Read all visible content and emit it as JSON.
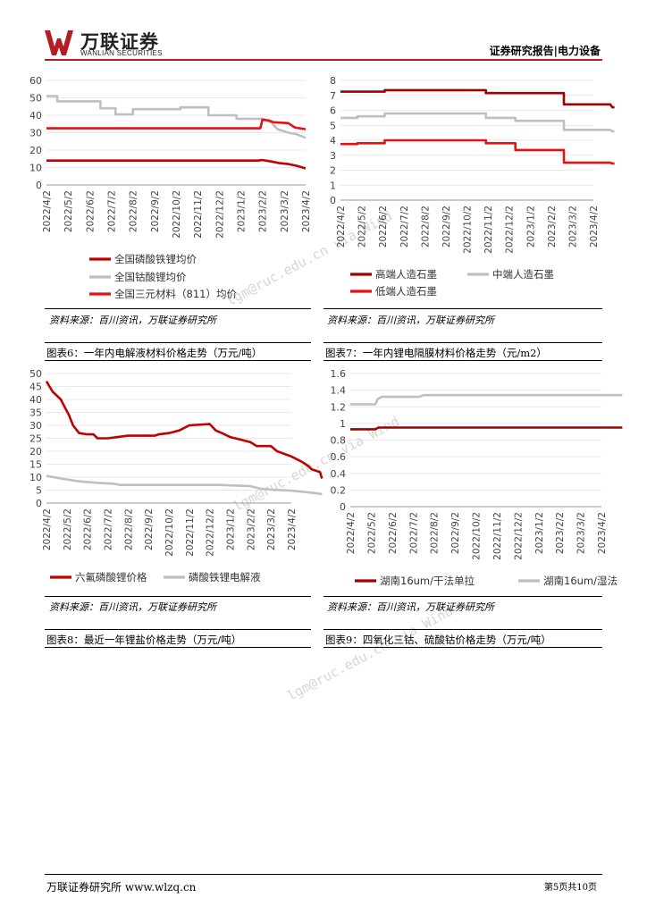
{
  "header": {
    "logo_cn": "万联证券",
    "logo_en": "WANLIAN SECURITIES",
    "report_type": "证券研究报告|电力设备",
    "brand_color": "#b21e23"
  },
  "watermarks": [
    "lgm@ruc.edu.cn via Wind",
    "lgm@ruc.edu.cn via Wind",
    "lgm@ruc.edu.cn via Wind"
  ],
  "charts": [
    {
      "type": "line",
      "x_ticks": [
        "2022/4/2",
        "2022/5/2",
        "2022/6/2",
        "2022/7/2",
        "2022/8/2",
        "2022/9/2",
        "2022/10/2",
        "2022/11/2",
        "2022/12/2",
        "2023/1/2",
        "2023/2/2",
        "2023/3/2",
        "2023/4/2"
      ],
      "ylim": [
        0,
        60
      ],
      "y_ticks": [
        "0",
        "10",
        "20",
        "30",
        "40",
        "50",
        "60"
      ],
      "series": [
        {
          "name": "全国磷酸铁锂均价",
          "color": "#c00000",
          "points": [
            [
              0,
              14
            ],
            [
              9.8,
              14
            ],
            [
              10,
              14.3
            ],
            [
              10.4,
              13.5
            ],
            [
              10.8,
              12.5
            ],
            [
              11.2,
              12
            ],
            [
              11.6,
              11
            ],
            [
              12,
              9.5
            ]
          ]
        },
        {
          "name": "全国钴酸锂均价",
          "color": "#bfbfbf",
          "points": [
            [
              0,
              51
            ],
            [
              0.5,
              51
            ],
            [
              0.5,
              48
            ],
            [
              2.5,
              48
            ],
            [
              2.5,
              44
            ],
            [
              3.2,
              44
            ],
            [
              3.2,
              40.5
            ],
            [
              4,
              40.5
            ],
            [
              4,
              43.5
            ],
            [
              6.2,
              43.5
            ],
            [
              6.2,
              44.5
            ],
            [
              7.5,
              44.5
            ],
            [
              7.5,
              40
            ],
            [
              8.8,
              40
            ],
            [
              8.8,
              38
            ],
            [
              10,
              38
            ],
            [
              10.4,
              36
            ],
            [
              10.7,
              32
            ],
            [
              11.2,
              30
            ],
            [
              11.6,
              29
            ],
            [
              12,
              27
            ]
          ]
        },
        {
          "name": "全国三元材料（811）均价",
          "color": "#e81010",
          "points": [
            [
              0,
              32.5
            ],
            [
              9.9,
              32.5
            ],
            [
              10,
              37.5
            ],
            [
              10.3,
              37
            ],
            [
              10.5,
              36
            ],
            [
              11.2,
              35.5
            ],
            [
              11.5,
              33
            ],
            [
              12,
              32
            ]
          ]
        }
      ]
    },
    {
      "type": "line",
      "x_ticks": [
        "2022/4/2",
        "2022/5/2",
        "2022/6/2",
        "2022/7/2",
        "2022/8/2",
        "2022/9/2",
        "2022/10/2",
        "2022/11/2",
        "2022/12/2",
        "2023/1/2",
        "2023/2/2",
        "2023/3/2",
        "2023/4/2"
      ],
      "ylim": [
        0,
        8
      ],
      "y_ticks": [
        "0",
        "1",
        "2",
        "3",
        "4",
        "5",
        "6",
        "7",
        "8"
      ],
      "series": [
        {
          "name": "高端人造石墨",
          "color": "#a00000",
          "points": [
            [
              0,
              7.25
            ],
            [
              2.1,
              7.25
            ],
            [
              2.1,
              7.35
            ],
            [
              6.9,
              7.35
            ],
            [
              6.9,
              7.15
            ],
            [
              10.6,
              7.15
            ],
            [
              10.6,
              6.4
            ],
            [
              12.8,
              6.4
            ],
            [
              12.9,
              6.2
            ],
            [
              13,
              6.2
            ]
          ]
        },
        {
          "name": "中端人造石墨",
          "color": "#bfbfbf",
          "points": [
            [
              0,
              5.5
            ],
            [
              0.8,
              5.5
            ],
            [
              0.8,
              5.6
            ],
            [
              2.1,
              5.6
            ],
            [
              2.1,
              5.8
            ],
            [
              6.9,
              5.8
            ],
            [
              6.9,
              5.5
            ],
            [
              8.3,
              5.5
            ],
            [
              8.3,
              5.3
            ],
            [
              10.6,
              5.3
            ],
            [
              10.6,
              4.7
            ],
            [
              12.8,
              4.7
            ],
            [
              12.9,
              4.6
            ],
            [
              13,
              4.6
            ]
          ]
        },
        {
          "name": "低端人造石墨",
          "color": "#e81010",
          "points": [
            [
              0,
              3.75
            ],
            [
              0.8,
              3.75
            ],
            [
              0.8,
              3.8
            ],
            [
              2.1,
              3.8
            ],
            [
              2.1,
              4.0
            ],
            [
              6.9,
              4.0
            ],
            [
              6.9,
              3.8
            ],
            [
              8.3,
              3.8
            ],
            [
              8.3,
              3.35
            ],
            [
              10.6,
              3.35
            ],
            [
              10.6,
              2.5
            ],
            [
              12.8,
              2.5
            ],
            [
              12.9,
              2.45
            ],
            [
              13,
              2.45
            ]
          ]
        }
      ]
    },
    {
      "type": "line",
      "x_ticks": [
        "2022/4/2",
        "2022/5/2",
        "2022/6/2",
        "2022/7/2",
        "2022/8/2",
        "2022/9/2",
        "2022/10/2",
        "2022/11/2",
        "2022/12/2",
        "2023/1/2",
        "2023/2/2",
        "2023/3/2",
        "2023/4/2"
      ],
      "ylim": [
        0,
        50
      ],
      "y_ticks": [
        "0",
        "5",
        "10",
        "15",
        "20",
        "25",
        "30",
        "35",
        "40",
        "45",
        "50"
      ],
      "series": [
        {
          "name": "六氟磷酸锂价格",
          "color": "#c00000",
          "points": [
            [
              0,
              47
            ],
            [
              0.15,
              45
            ],
            [
              0.3,
              43
            ],
            [
              0.5,
              41.5
            ],
            [
              0.7,
              40
            ],
            [
              0.9,
              37
            ],
            [
              1.1,
              34
            ],
            [
              1.3,
              30
            ],
            [
              1.6,
              27
            ],
            [
              2.0,
              26.5
            ],
            [
              2.3,
              26.5
            ],
            [
              2.5,
              25
            ],
            [
              3.0,
              25
            ],
            [
              3.5,
              25.5
            ],
            [
              4,
              26
            ],
            [
              5.3,
              26
            ],
            [
              5.5,
              26.5
            ],
            [
              6.0,
              27
            ],
            [
              6.5,
              28
            ],
            [
              7,
              30
            ],
            [
              8,
              30.5
            ],
            [
              8.3,
              28
            ],
            [
              8.6,
              27
            ],
            [
              9,
              25.5
            ],
            [
              9.5,
              24.5
            ],
            [
              10,
              23.5
            ],
            [
              10.3,
              22
            ],
            [
              11,
              22
            ],
            [
              11.3,
              20
            ],
            [
              12,
              18
            ],
            [
              12.5,
              16
            ],
            [
              12.8,
              14.5
            ],
            [
              13,
              13
            ],
            [
              13.4,
              12
            ],
            [
              13.5,
              9.5
            ]
          ]
        },
        {
          "name": "磷酸铁锂电解液",
          "color": "#bfbfbf",
          "points": [
            [
              0,
              10.5
            ],
            [
              0.7,
              9.5
            ],
            [
              1.5,
              8.5
            ],
            [
              2.5,
              7.8
            ],
            [
              3.3,
              7.5
            ],
            [
              3.6,
              7
            ],
            [
              6,
              7
            ],
            [
              8.5,
              7
            ],
            [
              10,
              6.5
            ],
            [
              10.5,
              5.5
            ],
            [
              11,
              5.2
            ],
            [
              12,
              4.8
            ],
            [
              13,
              4
            ],
            [
              13.5,
              3.5
            ]
          ]
        }
      ]
    },
    {
      "type": "line",
      "x_ticks": [
        "2022/4/2",
        "2022/5/2",
        "2022/6/2",
        "2022/7/2",
        "2022/8/2",
        "2022/9/2",
        "2022/10/2",
        "2022/11/2",
        "2022/12/2",
        "2023/1/2",
        "2023/2/2",
        "2023/3/2",
        "2023/4/2"
      ],
      "ylim": [
        0,
        1.6
      ],
      "y_ticks": [
        "0",
        "0.2",
        "0.4",
        "0.6",
        "0.8",
        "1",
        "1.2",
        "1.4",
        "1.6"
      ],
      "series": [
        {
          "name": "湖南16um/干法单拉",
          "color": "#a00000",
          "points": [
            [
              0,
              0.93
            ],
            [
              1.2,
              0.93
            ],
            [
              1.35,
              0.95
            ],
            [
              13,
              0.95
            ]
          ]
        },
        {
          "name": "湖南16um/湿法",
          "color": "#bfbfbf",
          "points": [
            [
              0,
              1.23
            ],
            [
              1.2,
              1.23
            ],
            [
              1.3,
              1.29
            ],
            [
              1.5,
              1.32
            ],
            [
              3.3,
              1.32
            ],
            [
              3.5,
              1.34
            ],
            [
              13,
              1.34
            ]
          ]
        }
      ]
    }
  ],
  "sources": [
    "资料来源：百川资讯，万联证券研究所",
    "资料来源：百川资讯，万联证券研究所",
    "资料来源：百川资讯，万联证券研究所",
    "资料来源：百川资讯，万联证券研究所"
  ],
  "captions": [
    "图表6：一年内电解液材料价格走势（万元/吨）",
    "图表7：一年内锂电隔膜材料价格走势（元/m2）",
    "图表8：最近一年锂盐价格走势（万元/吨）",
    "图表9：四氧化三钴、硫酸钴价格走势（万元/吨）"
  ],
  "footer": {
    "left": "万联证券研究所 www.wlzq.cn",
    "right": "第5页共10页"
  }
}
